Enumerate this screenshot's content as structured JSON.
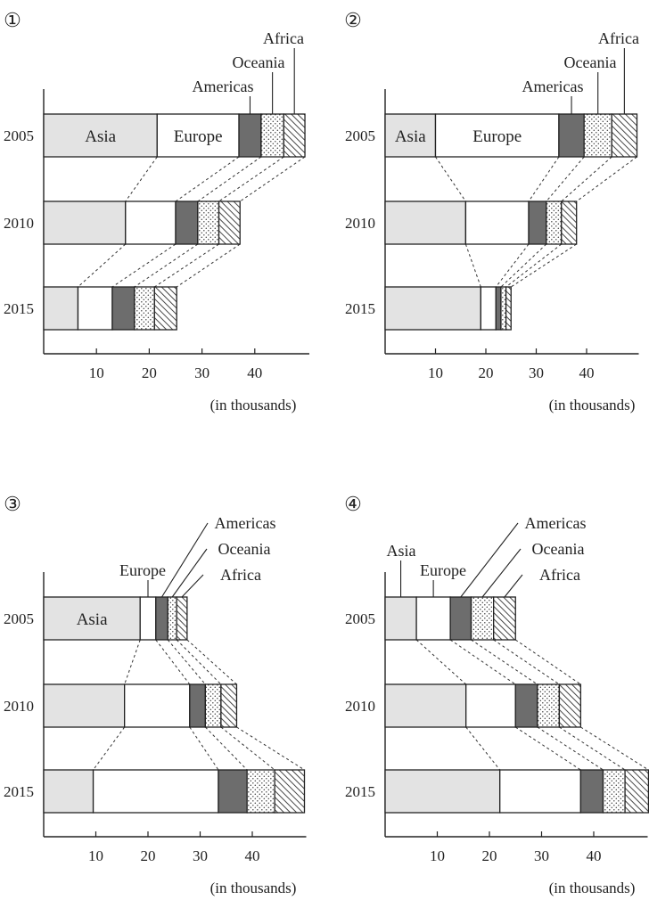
{
  "chart_data": [
    {
      "panel_label": "①",
      "type": "stacked-bar",
      "orientation": "horizontal",
      "categories": [
        "2005",
        "2010",
        "2015"
      ],
      "series": [
        {
          "name": "Asia",
          "values": [
            21.5,
            15.5,
            6.5
          ]
        },
        {
          "name": "Europe",
          "values": [
            15.5,
            9.5,
            6.5
          ]
        },
        {
          "name": "Americas",
          "values": [
            4.2,
            4.2,
            4.2
          ]
        },
        {
          "name": "Oceania",
          "values": [
            4.3,
            4.0,
            3.8
          ]
        },
        {
          "name": "Africa",
          "values": [
            4.0,
            4.0,
            4.2
          ]
        }
      ],
      "inside_labels": {
        "Asia": "Asia",
        "Europe": "Europe"
      },
      "callout_labels": [
        "Americas",
        "Oceania",
        "Africa"
      ],
      "xticks": [
        10,
        20,
        30,
        40
      ],
      "xunit": "(in thousands)",
      "xlim": [
        0,
        50
      ]
    },
    {
      "panel_label": "②",
      "type": "stacked-bar",
      "orientation": "horizontal",
      "categories": [
        "2005",
        "2010",
        "2015"
      ],
      "series": [
        {
          "name": "Asia",
          "values": [
            10,
            16,
            19
          ]
        },
        {
          "name": "Europe",
          "values": [
            24.5,
            12.5,
            3
          ]
        },
        {
          "name": "Americas",
          "values": [
            5,
            3.5,
            1
          ]
        },
        {
          "name": "Oceania",
          "values": [
            5.5,
            3,
            1
          ]
        },
        {
          "name": "Africa",
          "values": [
            5,
            3,
            1
          ]
        }
      ],
      "inside_labels": {
        "Asia": "Asia",
        "Europe": "Europe"
      },
      "callout_labels": [
        "Americas",
        "Oceania",
        "Africa"
      ],
      "xticks": [
        10,
        20,
        30,
        40
      ],
      "xunit": "(in thousands)",
      "xlim": [
        0,
        50
      ]
    },
    {
      "panel_label": "③",
      "type": "stacked-bar",
      "orientation": "horizontal",
      "categories": [
        "2005",
        "2010",
        "2015"
      ],
      "series": [
        {
          "name": "Asia",
          "values": [
            18.5,
            15.5,
            9.5
          ]
        },
        {
          "name": "Europe",
          "values": [
            3,
            12.5,
            24
          ]
        },
        {
          "name": "Americas",
          "values": [
            2.3,
            3,
            5.5
          ]
        },
        {
          "name": "Oceania",
          "values": [
            1.7,
            3,
            5.3
          ]
        },
        {
          "name": "Africa",
          "values": [
            2,
            3,
            5.7
          ]
        }
      ],
      "inside_labels": {
        "Asia": "Asia"
      },
      "callout_labels": [
        "Europe",
        "Americas",
        "Oceania",
        "Africa"
      ],
      "xticks": [
        10,
        20,
        30,
        40
      ],
      "xunit": "(in thousands)",
      "xlim": [
        0,
        50
      ]
    },
    {
      "panel_label": "④",
      "type": "stacked-bar",
      "orientation": "horizontal",
      "categories": [
        "2005",
        "2010",
        "2015"
      ],
      "series": [
        {
          "name": "Asia",
          "values": [
            6,
            15.5,
            22
          ]
        },
        {
          "name": "Europe",
          "values": [
            6.5,
            9.5,
            15.5
          ]
        },
        {
          "name": "Americas",
          "values": [
            4,
            4.2,
            4.3
          ]
        },
        {
          "name": "Oceania",
          "values": [
            4.3,
            4.2,
            4.2
          ]
        },
        {
          "name": "Africa",
          "values": [
            4.2,
            4.1,
            4.5
          ]
        }
      ],
      "inside_labels": {},
      "callout_labels": [
        "Asia",
        "Europe",
        "Americas",
        "Oceania",
        "Africa"
      ],
      "xticks": [
        10,
        20,
        30,
        40
      ],
      "xunit": "(in thousands)",
      "xlim": [
        0,
        50
      ]
    }
  ]
}
